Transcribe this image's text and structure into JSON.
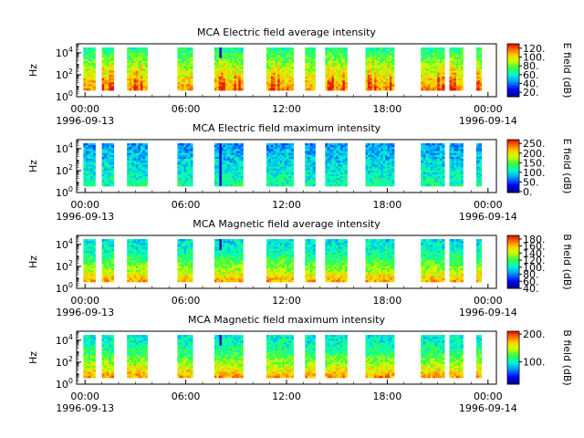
{
  "chart_data": [
    {
      "type": "heatmap",
      "title": "MCA  Electric field average intensity",
      "ylabel": "Hz",
      "colorbar_label": "E field (dB)",
      "colorbar_ticks": [
        "20.",
        "40.",
        "60.",
        "80.",
        "100.",
        "120."
      ],
      "colorbar_tick_values": [
        20,
        40,
        60,
        80,
        100,
        120
      ],
      "colorbar_range": [
        10,
        130
      ],
      "colormap_bias": 0.55
    },
    {
      "type": "heatmap",
      "title": "MCA  Electric field maximum intensity",
      "ylabel": "Hz",
      "colorbar_label": "E field (dB)",
      "colorbar_ticks": [
        "0.",
        "50.",
        "100.",
        "150.",
        "200.",
        "250."
      ],
      "colorbar_tick_values": [
        0,
        50,
        100,
        150,
        200,
        250
      ],
      "colorbar_range": [
        -5,
        270
      ],
      "colormap_bias": 0.42
    },
    {
      "type": "heatmap",
      "title": "MCA  Magnetic field average intensity",
      "ylabel": "Hz",
      "colorbar_label": "B field (dB)",
      "colorbar_ticks": [
        "40.",
        "60.",
        "80.",
        "100.",
        "120.",
        "140.",
        "160.",
        "180."
      ],
      "colorbar_tick_values": [
        40,
        60,
        80,
        100,
        120,
        140,
        160,
        180
      ],
      "colorbar_range": [
        40,
        190
      ],
      "colormap_bias": 0.48
    },
    {
      "type": "heatmap",
      "title": "MCA  Magnetic field maximum intensity",
      "ylabel": "Hz",
      "colorbar_label": "B field (dB)",
      "colorbar_ticks": [
        "100.",
        "200."
      ],
      "colorbar_tick_values": [
        100,
        200
      ],
      "colorbar_range": [
        20,
        210
      ],
      "colormap_bias": 0.55
    }
  ],
  "shared_axes": {
    "y_scale": "log",
    "y_ticks": [
      {
        "mant": "10",
        "exp": "0",
        "value": 1
      },
      {
        "mant": "10",
        "exp": "2",
        "value": 100
      },
      {
        "mant": "10",
        "exp": "4",
        "value": 10000
      }
    ],
    "y_range": [
      1,
      65000
    ],
    "x_start": "1996-09-13 00:00",
    "x_end": "1996-09-14 00:00",
    "x_range_hours": [
      -0.5,
      24.5
    ],
    "x_ticks": [
      {
        "hour": 0,
        "time": "00:00",
        "date": "1996-09-13"
      },
      {
        "hour": 6,
        "time": "06:00",
        "date": ""
      },
      {
        "hour": 12,
        "time": "12:00",
        "date": ""
      },
      {
        "hour": 18,
        "time": "18:00",
        "date": ""
      },
      {
        "hour": 24,
        "time": "00:00",
        "date": "1996-09-14"
      }
    ],
    "data_segments_hours": [
      [
        -0.1,
        0.6
      ],
      [
        1.0,
        1.7
      ],
      [
        2.5,
        3.7
      ],
      [
        5.5,
        6.4
      ],
      [
        7.7,
        9.4
      ],
      [
        10.8,
        12.4
      ],
      [
        13.1,
        13.7
      ],
      [
        14.3,
        15.6
      ],
      [
        16.7,
        18.4
      ],
      [
        20.0,
        21.4
      ],
      [
        21.7,
        22.5
      ],
      [
        23.3,
        23.6
      ]
    ],
    "data_freq_range_hz": [
      4,
      30000
    ]
  }
}
